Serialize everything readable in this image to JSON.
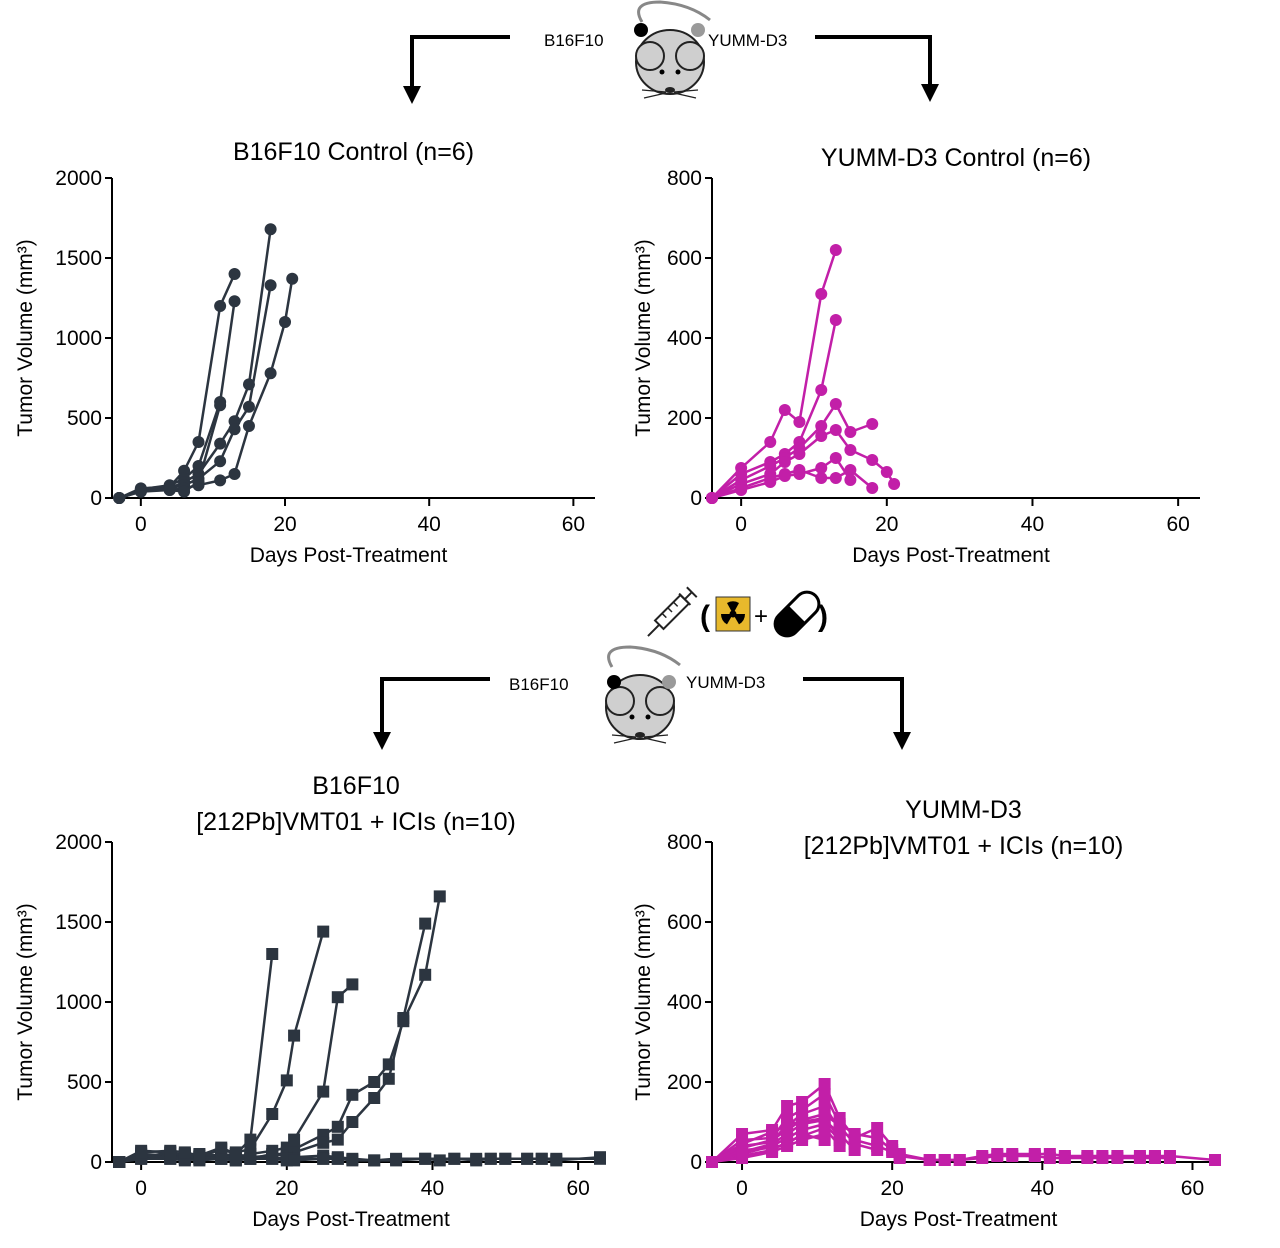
{
  "top_schematic": {
    "left_tumor": "B16F10",
    "right_tumor": "YUMM-D3",
    "left_tumor_color": "#000000",
    "right_tumor_color": "#9a9a9a"
  },
  "treatment_schematic": {
    "left_tumor": "B16F10",
    "right_tumor": "YUMM-D3",
    "icons": [
      "syringe-icon",
      "radiation-icon",
      "capsule-icon"
    ],
    "open_paren": "(",
    "plus": "+",
    "close_paren": ")",
    "radiation_color": "#e8b92c"
  },
  "chart_data": [
    {
      "type": "line",
      "title": [
        "B16F10 Control  (n=6)"
      ],
      "xlabel": "Days Post-Treatment",
      "ylabel": "Tumor Volume (mm³)",
      "xticks": [
        0,
        20,
        40,
        60
      ],
      "yticks": [
        0,
        500,
        1000,
        1500,
        2000
      ],
      "xlim": [
        -4,
        63
      ],
      "ylim": [
        0,
        2000
      ],
      "marker": "circle",
      "color": "#2c3540",
      "series": [
        {
          "x": [
            -3,
            0,
            4,
            6,
            8,
            11,
            13
          ],
          "y": [
            0,
            60,
            70,
            170,
            350,
            1200,
            1400
          ]
        },
        {
          "x": [
            -3,
            0,
            4,
            6,
            8,
            11,
            13
          ],
          "y": [
            0,
            55,
            80,
            120,
            200,
            600,
            1230
          ]
        },
        {
          "x": [
            -3,
            0,
            4,
            6,
            8,
            11,
            13,
            15,
            18
          ],
          "y": [
            0,
            50,
            60,
            100,
            150,
            340,
            480,
            710,
            1680
          ]
        },
        {
          "x": [
            -3,
            0,
            4,
            6,
            8,
            11,
            13,
            15,
            18
          ],
          "y": [
            0,
            40,
            60,
            80,
            120,
            230,
            430,
            570,
            1330
          ]
        },
        {
          "x": [
            -3,
            0,
            4,
            6,
            8,
            11,
            13,
            15,
            18,
            20,
            21
          ],
          "y": [
            0,
            45,
            50,
            60,
            80,
            110,
            150,
            450,
            780,
            1100,
            1370
          ]
        },
        {
          "x": [
            -3,
            0,
            4,
            6,
            8,
            11
          ],
          "y": [
            0,
            40,
            50,
            40,
            100,
            580
          ]
        }
      ]
    },
    {
      "type": "line",
      "title": [
        "YUMM-D3 Control  (n=6)"
      ],
      "xlabel": "Days Post-Treatment",
      "ylabel": "Tumor Volume (mm³)",
      "xticks": [
        0,
        20,
        40,
        60
      ],
      "yticks": [
        0,
        200,
        400,
        600,
        800
      ],
      "xlim": [
        -4,
        63
      ],
      "ylim": [
        0,
        800
      ],
      "marker": "circle",
      "color": "#c21fa8",
      "series": [
        {
          "x": [
            -4,
            0,
            4,
            6,
            8,
            11,
            13
          ],
          "y": [
            0,
            75,
            140,
            220,
            190,
            510,
            620
          ]
        },
        {
          "x": [
            -4,
            0,
            4,
            6,
            8,
            11,
            13
          ],
          "y": [
            0,
            60,
            90,
            110,
            140,
            270,
            445
          ]
        },
        {
          "x": [
            -4,
            0,
            4,
            6,
            8,
            11,
            13,
            15,
            18
          ],
          "y": [
            0,
            45,
            80,
            100,
            125,
            180,
            235,
            165,
            185
          ]
        },
        {
          "x": [
            -4,
            0,
            4,
            6,
            8,
            11,
            13,
            15,
            18,
            20,
            21
          ],
          "y": [
            0,
            35,
            60,
            90,
            110,
            155,
            170,
            120,
            95,
            65,
            35
          ]
        },
        {
          "x": [
            -4,
            0,
            4,
            6,
            8,
            11,
            13,
            15,
            18
          ],
          "y": [
            0,
            25,
            50,
            60,
            70,
            50,
            50,
            70,
            25
          ]
        },
        {
          "x": [
            -4,
            0,
            4,
            6,
            8,
            11,
            13,
            15
          ],
          "y": [
            0,
            20,
            40,
            55,
            60,
            75,
            100,
            45
          ]
        }
      ]
    },
    {
      "type": "line",
      "title": [
        "B16F10",
        "[212Pb]VMT01 + ICIs (n=10)"
      ],
      "xlabel": "Days Post-Treatment",
      "ylabel": "Tumor Volume (mm³)",
      "xticks": [
        0,
        20,
        40,
        60
      ],
      "yticks": [
        0,
        500,
        1000,
        1500,
        2000
      ],
      "xlim": [
        -4,
        63
      ],
      "ylim": [
        0,
        2000
      ],
      "marker": "square",
      "color": "#2c3540",
      "series": [
        {
          "x": [
            -3,
            0,
            4,
            6,
            8,
            11,
            13,
            15,
            18
          ],
          "y": [
            0,
            70,
            60,
            40,
            30,
            80,
            50,
            140,
            1300
          ]
        },
        {
          "x": [
            -3,
            0,
            4,
            6,
            8,
            11,
            13,
            15,
            18,
            20,
            21,
            25
          ],
          "y": [
            0,
            40,
            30,
            50,
            40,
            30,
            60,
            80,
            300,
            510,
            790,
            1440
          ]
        },
        {
          "x": [
            -3,
            0,
            4,
            6,
            8,
            11,
            13,
            15,
            18,
            20,
            21,
            25,
            27,
            29
          ],
          "y": [
            0,
            30,
            40,
            30,
            20,
            40,
            30,
            50,
            70,
            90,
            140,
            440,
            1030,
            1110
          ]
        },
        {
          "x": [
            -3,
            0,
            4,
            6,
            8,
            11,
            13,
            15,
            18,
            20,
            21,
            25,
            27,
            29,
            32,
            34,
            36,
            39,
            41
          ],
          "y": [
            0,
            20,
            30,
            20,
            20,
            30,
            20,
            30,
            40,
            60,
            80,
            170,
            220,
            420,
            500,
            610,
            880,
            1170,
            1660
          ]
        },
        {
          "x": [
            -3,
            0,
            4,
            6,
            8,
            11,
            13,
            15,
            18,
            20,
            21,
            25,
            27,
            29,
            32,
            34,
            36,
            39
          ],
          "y": [
            0,
            30,
            20,
            30,
            30,
            20,
            30,
            20,
            50,
            40,
            60,
            120,
            140,
            250,
            400,
            520,
            900,
            1490
          ]
        },
        {
          "x": [
            -3,
            0,
            4,
            6,
            8,
            11,
            13,
            15,
            18,
            20,
            21,
            25,
            27,
            29,
            32,
            35,
            39,
            41,
            43,
            46,
            48,
            50,
            53,
            55,
            57,
            63
          ],
          "y": [
            0,
            20,
            20,
            10,
            20,
            30,
            20,
            30,
            20,
            10,
            30,
            40,
            30,
            20,
            10,
            20,
            20,
            10,
            20,
            20,
            20,
            20,
            20,
            20,
            20,
            20
          ]
        },
        {
          "x": [
            -3,
            0,
            4,
            6,
            8,
            11,
            13,
            15,
            18,
            20,
            21,
            25,
            27,
            29,
            32,
            35,
            39,
            43,
            46,
            48,
            50,
            53,
            55,
            57,
            63
          ],
          "y": [
            0,
            50,
            40,
            30,
            50,
            40,
            30,
            20,
            20,
            30,
            20,
            20,
            20,
            10,
            10,
            10,
            20,
            20,
            10,
            20,
            20,
            20,
            20,
            10,
            30
          ]
        },
        {
          "x": [
            -3,
            0,
            4,
            6,
            8,
            11,
            13,
            15,
            18,
            20,
            21,
            25,
            27
          ],
          "y": [
            0,
            30,
            60,
            40,
            30,
            20,
            10,
            20,
            30,
            20,
            10,
            20,
            20
          ]
        },
        {
          "x": [
            -3,
            0,
            4,
            6,
            8,
            11,
            13
          ],
          "y": [
            0,
            40,
            30,
            20,
            10,
            20,
            10
          ]
        },
        {
          "x": [
            -3,
            0,
            4,
            6,
            8,
            11,
            13,
            15
          ],
          "y": [
            0,
            60,
            70,
            60,
            40,
            90,
            50,
            30
          ]
        }
      ]
    },
    {
      "type": "line",
      "title": [
        "YUMM-D3",
        "[212Pb]VMT01 + ICIs (n=10)"
      ],
      "xlabel": "Days Post-Treatment",
      "ylabel": "Tumor Volume (mm³)",
      "xticks": [
        0,
        20,
        40,
        60
      ],
      "yticks": [
        0,
        200,
        400,
        600,
        800
      ],
      "xlim": [
        -4,
        63
      ],
      "ylim": [
        0,
        800
      ],
      "marker": "square",
      "color": "#c21fa8",
      "series": [
        {
          "x": [
            -4,
            0,
            4,
            6,
            8,
            11,
            13,
            15,
            18,
            20,
            21,
            25,
            27,
            29,
            32,
            34,
            36,
            39,
            41,
            43,
            46,
            48,
            50,
            53,
            55,
            57,
            63
          ],
          "y": [
            0,
            70,
            80,
            140,
            150,
            195,
            110,
            60,
            85,
            40,
            20,
            5,
            5,
            5,
            15,
            20,
            20,
            20,
            20,
            15,
            15,
            15,
            15,
            15,
            15,
            15,
            5
          ]
        },
        {
          "x": [
            -4,
            0,
            4,
            6,
            8,
            11,
            13,
            15,
            18,
            20,
            21,
            25,
            27,
            29,
            32,
            34,
            36,
            39,
            41,
            43,
            46,
            48,
            50,
            53,
            55,
            57
          ],
          "y": [
            0,
            55,
            60,
            110,
            130,
            170,
            95,
            70,
            60,
            30,
            15,
            5,
            5,
            5,
            10,
            15,
            15,
            15,
            10,
            10,
            10,
            10,
            10,
            10,
            10,
            10
          ]
        },
        {
          "x": [
            -4,
            0,
            4,
            6,
            8,
            11,
            13,
            15,
            18,
            20,
            21
          ],
          "y": [
            0,
            45,
            75,
            90,
            120,
            140,
            80,
            55,
            40,
            25,
            10
          ]
        },
        {
          "x": [
            -4,
            0,
            4,
            6,
            8,
            11,
            13,
            15,
            18
          ],
          "y": [
            0,
            35,
            55,
            80,
            105,
            120,
            90,
            45,
            30
          ]
        },
        {
          "x": [
            -4,
            0,
            4,
            6,
            8,
            11,
            13,
            15
          ],
          "y": [
            0,
            25,
            45,
            70,
            95,
            105,
            70,
            30
          ]
        },
        {
          "x": [
            -4,
            0,
            4,
            6,
            8,
            11,
            13
          ],
          "y": [
            0,
            20,
            40,
            60,
            80,
            95,
            55
          ]
        },
        {
          "x": [
            -4,
            0,
            4,
            6,
            8,
            11,
            13
          ],
          "y": [
            0,
            15,
            30,
            50,
            65,
            85,
            40
          ]
        },
        {
          "x": [
            -4,
            0,
            4,
            6,
            8,
            11
          ],
          "y": [
            0,
            10,
            25,
            40,
            55,
            70
          ]
        },
        {
          "x": [
            -4,
            0,
            4,
            6,
            8,
            11
          ],
          "y": [
            0,
            30,
            35,
            45,
            70,
            55
          ]
        },
        {
          "x": [
            -4,
            0,
            4,
            6,
            8,
            11,
            13
          ],
          "y": [
            0,
            40,
            50,
            95,
            100,
            110,
            60
          ]
        }
      ]
    }
  ]
}
